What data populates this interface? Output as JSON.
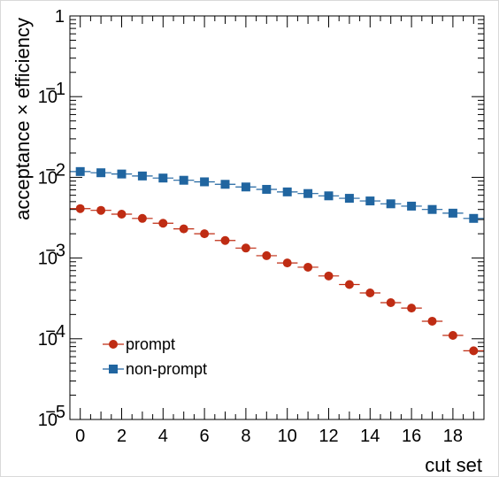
{
  "chart_data": {
    "type": "scatter",
    "xlabel": "cut set",
    "ylabel": "acceptance × efficiency",
    "x": [
      0,
      1,
      2,
      3,
      4,
      5,
      6,
      7,
      8,
      9,
      10,
      11,
      12,
      13,
      14,
      15,
      16,
      17,
      18,
      19
    ],
    "xlim": [
      -0.5,
      19.5
    ],
    "ylim": [
      1e-05,
      1
    ],
    "yscale": "log",
    "grid": false,
    "legend_position": "bottom-left",
    "xticks": [
      {
        "value": 0,
        "label": "0"
      },
      {
        "value": 2,
        "label": "2"
      },
      {
        "value": 4,
        "label": "4"
      },
      {
        "value": 6,
        "label": "6"
      },
      {
        "value": 8,
        "label": "8"
      },
      {
        "value": 10,
        "label": "10"
      },
      {
        "value": 12,
        "label": "12"
      },
      {
        "value": 14,
        "label": "14"
      },
      {
        "value": 16,
        "label": "16"
      },
      {
        "value": 18,
        "label": "18"
      }
    ],
    "yticks": [
      {
        "value": 1e-05,
        "base": "10",
        "exp": "−5"
      },
      {
        "value": 0.0001,
        "base": "10",
        "exp": "−4"
      },
      {
        "value": 0.001,
        "base": "10",
        "exp": "−3"
      },
      {
        "value": 0.01,
        "base": "10",
        "exp": "−2"
      },
      {
        "value": 0.1,
        "base": "10",
        "exp": "−1"
      },
      {
        "value": 1,
        "base": "1",
        "exp": ""
      }
    ],
    "series": [
      {
        "name": "prompt",
        "marker": "circle",
        "color": "#bf2c13",
        "values": [
          0.0041,
          0.0039,
          0.0035,
          0.0031,
          0.0027,
          0.0023,
          0.002,
          0.00165,
          0.00133,
          0.00107,
          0.00087,
          0.00077,
          0.0006,
          0.00047,
          0.00037,
          0.00028,
          0.00024,
          0.000165,
          0.00011,
          7.1e-05
        ]
      },
      {
        "name": "non-prompt",
        "marker": "square",
        "color": "#2065a0",
        "values": [
          0.0118,
          0.0114,
          0.011,
          0.0104,
          0.0098,
          0.0092,
          0.0088,
          0.0082,
          0.0076,
          0.0071,
          0.0066,
          0.0063,
          0.0059,
          0.0055,
          0.0051,
          0.0047,
          0.0044,
          0.004,
          0.0036,
          0.0031
        ]
      }
    ]
  }
}
